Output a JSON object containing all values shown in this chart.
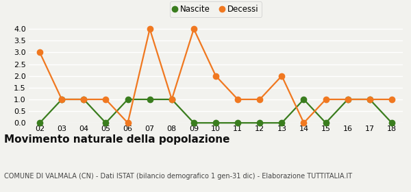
{
  "years": [
    "02",
    "03",
    "04",
    "05",
    "06",
    "07",
    "08",
    "09",
    "10",
    "11",
    "12",
    "13",
    "14",
    "15",
    "16",
    "17",
    "18"
  ],
  "nascite": [
    0,
    1,
    1,
    0,
    1,
    1,
    1,
    0,
    0,
    0,
    0,
    0,
    1,
    0,
    1,
    1,
    0
  ],
  "decessi": [
    3,
    1,
    1,
    1,
    0,
    4,
    1,
    4,
    2,
    1,
    1,
    2,
    0,
    1,
    1,
    1,
    1
  ],
  "nascite_color": "#3a7d1e",
  "decessi_color": "#f07820",
  "nascite_label": "Nascite",
  "decessi_label": "Decessi",
  "ylim": [
    0,
    4.25
  ],
  "yticks": [
    0,
    0.5,
    1.0,
    1.5,
    2.0,
    2.5,
    3.0,
    3.5,
    4.0
  ],
  "title": "Movimento naturale della popolazione",
  "subtitle": "COMUNE DI VALMALA (CN) - Dati ISTAT (bilancio demografico 1 gen-31 dic) - Elaborazione TUTTITALIA.IT",
  "bg_color": "#f2f2ee",
  "grid_color": "#ffffff",
  "title_fontsize": 11,
  "subtitle_fontsize": 7,
  "marker_size": 6,
  "line_width": 1.6
}
